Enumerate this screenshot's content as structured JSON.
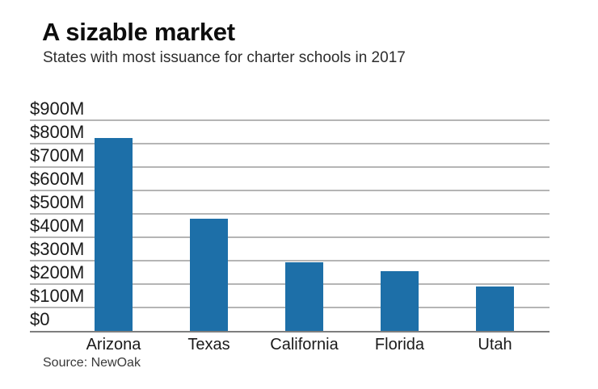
{
  "header": {
    "title": "A sizable market",
    "subtitle": "States with most issuance for charter schools in 2017"
  },
  "chart_data": {
    "type": "bar",
    "categories": [
      "Arizona",
      "Texas",
      "California",
      "Florida",
      "Utah"
    ],
    "values": [
      825,
      480,
      295,
      255,
      190
    ],
    "unit": "USD millions",
    "title": "A sizable market",
    "subtitle": "States with most issuance for charter schools in 2017",
    "xlabel": "",
    "ylabel": "",
    "ylim": [
      0,
      900
    ],
    "y_tick_labels_top_to_bottom": [
      "$900M",
      "$800M",
      "$700M",
      "$600M",
      "$500M",
      "$400M",
      "$300M",
      "$200M",
      "$100M",
      "$0"
    ],
    "grid": true,
    "legend": false,
    "bar_color": "#1d6fa8"
  },
  "footer": {
    "source": "Source: NewOak"
  },
  "colors": {
    "bar": "#1d6fa8",
    "gridline": "#b5b5b5",
    "axis_baseline": "#7e7e7e",
    "title_text": "#0d0d0d",
    "subtitle_text": "#2d2d2d",
    "tick_text": "#1a1a1a",
    "source_text": "#3a3a3a",
    "background": "#ffffff"
  }
}
